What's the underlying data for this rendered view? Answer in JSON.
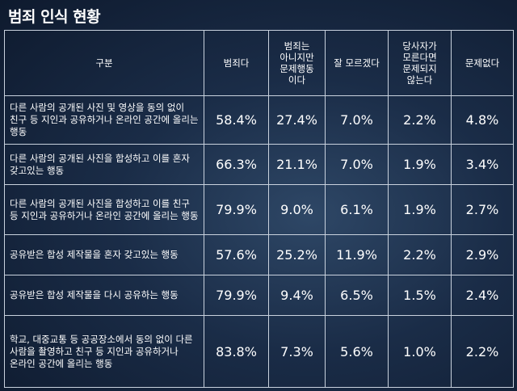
{
  "title": "범죄 인식 현황",
  "table": {
    "headers": {
      "category": "구분",
      "col1": "범죄다",
      "col2_lines": [
        "범죄는",
        "아니지만",
        "문제행동",
        "이다"
      ],
      "col3": "잘 모르겠다",
      "col4_lines": [
        "당사자가",
        "모른다면",
        "문제되지",
        "않는다"
      ],
      "col5": "문제없다"
    },
    "rows": [
      {
        "item": "다른 사람의 공개된 사진 및 영상을 동의 없이 친구 등 지인과 공유하거나 온라인 공간에 올리는 행동",
        "v1": "58.4%",
        "v2": "27.4%",
        "v3": "7.0%",
        "v4": "2.2%",
        "v5": "4.8%"
      },
      {
        "item": "다른 사람의 공개된 사진을 합성하고 이를 혼자 갖고있는 행동",
        "v1": "66.3%",
        "v2": "21.1%",
        "v3": "7.0%",
        "v4": "1.9%",
        "v5": "3.4%"
      },
      {
        "item": "다른 사람의 공개된 사진을 합성하고 이를 친구 등 지인과 공유하거나 온라인 공간에 올리는 행동",
        "v1": "79.9%",
        "v2": "9.0%",
        "v3": "6.1%",
        "v4": "1.9%",
        "v5": "2.7%"
      },
      {
        "item": "공유받은 합성 제작물을 혼자 갖고있는 행동",
        "v1": "57.6%",
        "v2": "25.2%",
        "v3": "11.9%",
        "v4": "2.2%",
        "v5": "2.9%"
      },
      {
        "item": "공유받은 합성 제작물을 다시 공유하는 행동",
        "v1": "79.9%",
        "v2": "9.4%",
        "v3": "6.5%",
        "v4": "1.5%",
        "v5": "2.4%"
      },
      {
        "item": "학교, 대중교통 등 공공장소에서 동의 없이 다른 사람을 촬영하고 친구 등 지인과 공유하거나 온라인 공간에 올리는 행동",
        "v1": "83.8%",
        "v2": "7.3%",
        "v3": "5.6%",
        "v4": "1.0%",
        "v5": "2.2%"
      }
    ]
  }
}
